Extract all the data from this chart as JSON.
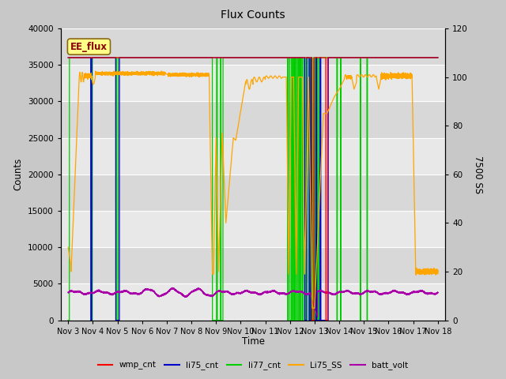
{
  "title": "Flux Counts",
  "ylabel_left": "Counts",
  "ylabel_right": "7500 SS",
  "xlabel": "Time",
  "ylim_left": [
    0,
    40000
  ],
  "ylim_right": [
    0,
    120
  ],
  "fig_bg": "#c8c8c8",
  "plot_bg_top": "#d8d8d8",
  "plot_bg_bottom": "#e8e8e8",
  "grid_color": "#ffffff",
  "annotation_text": "EE_flux",
  "annotation_fg": "#8B0000",
  "annotation_bg": "#ffff88",
  "annotation_border": "#8B6914",
  "tick_labels": [
    "Nov 3",
    "Nov 4",
    "Nov 5",
    "Nov 6",
    "Nov 7",
    "Nov 8",
    "Nov 9",
    "Nov 10",
    "Nov 11",
    "Nov 12",
    "Nov 13",
    "Nov 14",
    "Nov 15",
    "Nov 16",
    "Nov 17",
    "Nov 18"
  ],
  "legend_entries": [
    "wmp_cnt",
    "li75_cnt",
    "li77_cnt",
    "Li75_SS",
    "batt_volt"
  ],
  "legend_colors": [
    "#ff0000",
    "#0000cc",
    "#00cc00",
    "#ffa500",
    "#aa00aa"
  ]
}
